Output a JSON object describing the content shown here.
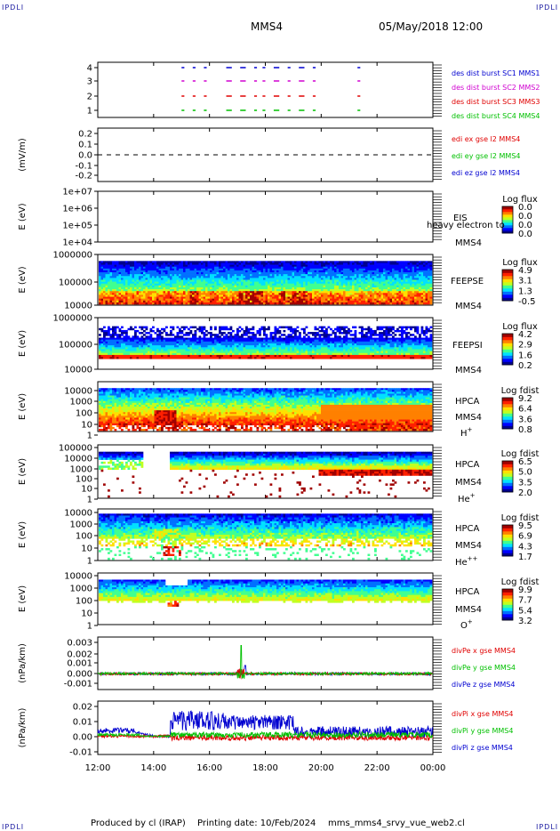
{
  "header": {
    "corner_tl": "IPDLI",
    "corner_tr": "IPDLI",
    "corner_bl": "IPDLI",
    "corner_br": "IPDLI",
    "spacecraft": "MMS4",
    "datetime": "05/May/2018 12:00"
  },
  "footer": {
    "produced_by": "Produced by cl (IRAP)",
    "printing_date": "Printing date: 10/Feb/2024",
    "script_name": "mms_mms4_srvy_vue_web2.cl"
  },
  "colors": {
    "red": "#e00000",
    "green": "#00c000",
    "blue": "#0000d0",
    "magenta": "#d000d0",
    "colorbar": [
      "#00008f",
      "#0000ff",
      "#0070ff",
      "#00e0ff",
      "#40ff90",
      "#c0ff20",
      "#ffe000",
      "#ff8000",
      "#ff2000",
      "#a00000"
    ]
  },
  "time_axis": {
    "ticks": [
      "12:00",
      "14:00",
      "16:00",
      "18:00",
      "20:00",
      "22:00",
      "00:00"
    ]
  },
  "chart_data": [
    {
      "type": "line",
      "panel": "burst",
      "ylabel": "",
      "yticks": [
        "4",
        "3",
        "2",
        "1"
      ],
      "ylim": [
        0.5,
        4.5
      ],
      "series": [
        {
          "name": "des dist burst SC1 MMS1",
          "color": "blue",
          "level": 4
        },
        {
          "name": "des dist burst SC2 MMS2",
          "color": "magenta",
          "level": 3
        },
        {
          "name": "des dist burst SC3 MMS3",
          "color": "red",
          "level": 2
        },
        {
          "name": "des dist burst SC4 MMS4",
          "color": "green",
          "level": 1
        }
      ],
      "intervals_hours": [
        [
          15.0,
          15.1
        ],
        [
          15.4,
          15.5
        ],
        [
          15.8,
          15.9
        ],
        [
          16.6,
          16.8
        ],
        [
          17.1,
          17.3
        ],
        [
          17.6,
          17.7
        ],
        [
          17.9,
          18.0
        ],
        [
          18.3,
          18.5
        ],
        [
          18.8,
          18.9
        ],
        [
          19.2,
          19.4
        ],
        [
          19.7,
          19.8
        ],
        [
          21.3,
          21.4
        ]
      ]
    },
    {
      "type": "line",
      "panel": "edi",
      "ylabel": "(mV/m)",
      "yticks": [
        "0.2",
        "0.1",
        "0.0",
        "-0.1",
        "-0.2"
      ],
      "ylim": [
        -0.25,
        0.25
      ],
      "series": [
        {
          "name": "edi ex gse l2 MMS4",
          "color": "red",
          "value": 0.0
        },
        {
          "name": "edi ey gse l2 MMS4",
          "color": "green",
          "value": 0.0
        },
        {
          "name": "edi ez gse l2 MMS4",
          "color": "blue",
          "value": 0.0
        }
      ]
    },
    {
      "type": "heatmap",
      "panel": "eis",
      "ylabel": "E (eV)",
      "yticks": [
        "1e+07",
        "1e+06",
        "1e+05",
        "1e+04"
      ],
      "ylim": [
        10000,
        10000000
      ],
      "log_y": true,
      "empty": true,
      "instrument": "EIS",
      "species": "heavy electron to",
      "sc": "MMS4",
      "colorbar_title": "Log flux",
      "colorbar_ticks": [
        "0.0",
        "0.0",
        "0.0",
        "0.0"
      ]
    },
    {
      "type": "heatmap",
      "panel": "feepse",
      "ylabel": "E (eV)",
      "yticks": [
        "1000000",
        "100000",
        "10000"
      ],
      "ylim": [
        10000,
        1000000
      ],
      "log_y": true,
      "instrument": "FEEPSE",
      "sc": "MMS4",
      "colorbar_title": "Log flux",
      "colorbar_ticks": [
        "4.9",
        "3.1",
        "1.3",
        "-0.5"
      ]
    },
    {
      "type": "heatmap",
      "panel": "feepsi",
      "ylabel": "E (eV)",
      "yticks": [
        "1000000",
        "100000",
        "10000"
      ],
      "ylim": [
        10000,
        1000000
      ],
      "log_y": true,
      "instrument": "FEEPSI",
      "sc": "MMS4",
      "colorbar_title": "Log flux",
      "colorbar_ticks": [
        "4.2",
        "2.9",
        "1.6",
        "0.2"
      ]
    },
    {
      "type": "heatmap",
      "panel": "hpca_h",
      "ylabel": "E (eV)",
      "yticks": [
        "10000",
        "1000",
        "100",
        "10",
        "1"
      ],
      "ylim": [
        1,
        40000
      ],
      "log_y": true,
      "instrument": "HPCA",
      "sc": "MMS4",
      "species": "H",
      "charge": "+",
      "colorbar_title": "Log fdist",
      "colorbar_ticks": [
        "9.2",
        "6.4",
        "3.6",
        "0.8"
      ]
    },
    {
      "type": "heatmap",
      "panel": "hpca_he1",
      "ylabel": "E (eV)",
      "yticks": [
        "100000",
        "10000",
        "1000",
        "100",
        "10",
        "1"
      ],
      "ylim": [
        1,
        100000
      ],
      "log_y": true,
      "instrument": "HPCA",
      "sc": "MMS4",
      "species": "He",
      "charge": "+",
      "colorbar_title": "Log fdist",
      "colorbar_ticks": [
        "6.5",
        "5.0",
        "3.5",
        "2.0"
      ]
    },
    {
      "type": "heatmap",
      "panel": "hpca_he2",
      "ylabel": "E (eV)",
      "yticks": [
        "10000",
        "1000",
        "100",
        "10",
        "1"
      ],
      "ylim": [
        1,
        40000
      ],
      "log_y": true,
      "instrument": "HPCA",
      "sc": "MMS4",
      "species": "He",
      "charge": "++",
      "colorbar_title": "Log fdist",
      "colorbar_ticks": [
        "9.5",
        "6.9",
        "4.3",
        "1.7"
      ]
    },
    {
      "type": "heatmap",
      "panel": "hpca_o",
      "ylabel": "E (eV)",
      "yticks": [
        "10000",
        "1000",
        "100",
        "10",
        "1"
      ],
      "ylim": [
        1,
        40000
      ],
      "log_y": true,
      "instrument": "HPCA",
      "sc": "MMS4",
      "species": "O",
      "charge": "+",
      "colorbar_title": "Log fdist",
      "colorbar_ticks": [
        "9.9",
        "7.7",
        "5.4",
        "3.2"
      ]
    },
    {
      "type": "line",
      "panel": "divpe",
      "ylabel": "(nPa/km)",
      "yticks": [
        "0.003",
        "0.002",
        "0.001",
        "0.000",
        "-0.001"
      ],
      "ylim": [
        -0.0015,
        0.0035
      ],
      "series": [
        {
          "name": "divPe x gse MMS4",
          "color": "red"
        },
        {
          "name": "divPe y gse MMS4",
          "color": "green"
        },
        {
          "name": "divPe z gse MMS4",
          "color": "blue"
        }
      ]
    },
    {
      "type": "line",
      "panel": "divpi",
      "ylabel": "(nPa/km)",
      "yticks": [
        "0.02",
        "0.01",
        "0.00",
        "-0.01"
      ],
      "ylim": [
        -0.013,
        0.025
      ],
      "series": [
        {
          "name": "divPi x gse MMS4",
          "color": "red"
        },
        {
          "name": "divPi y gse MMS4",
          "color": "green"
        },
        {
          "name": "divPi z gse MMS4",
          "color": "blue"
        }
      ]
    }
  ]
}
